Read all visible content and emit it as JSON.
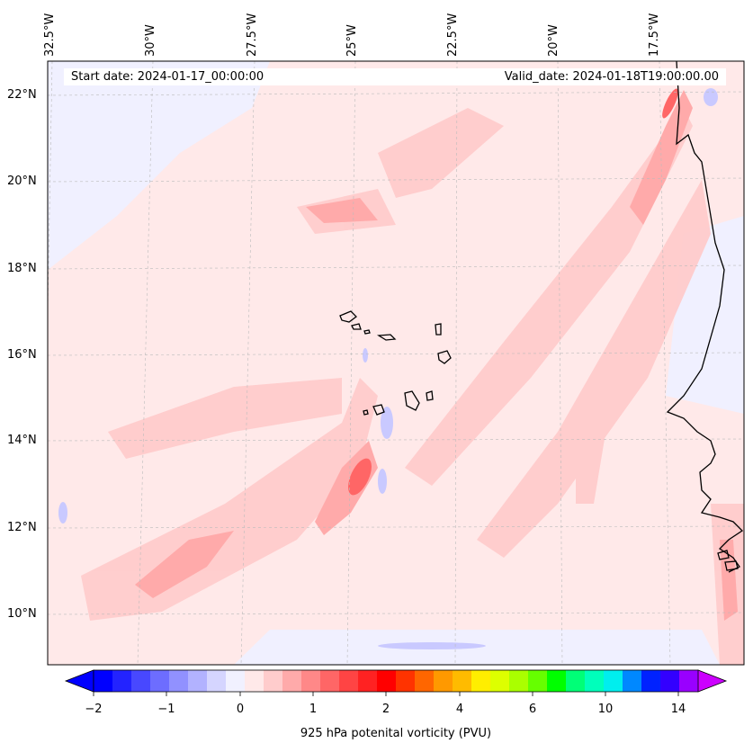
{
  "header": {
    "start_date": "Start date: 2024-01-17_00:00:00",
    "valid_date": "Valid_date: 2024-01-18T19:00:00.00"
  },
  "map": {
    "longitude_labels": [
      "32.5°W",
      "30°W",
      "27.5°W",
      "25°W",
      "22.5°W",
      "20°W",
      "17.5°W"
    ],
    "latitude_labels": [
      "22°N",
      "20°N",
      "18°N",
      "16°N",
      "14°N",
      "12°N",
      "10°N"
    ],
    "background_color": "#ffe9e9",
    "coastline_color": "#000000"
  },
  "colorbar": {
    "title": "925 hPa potenital vorticity (PVU)",
    "tick_labels": [
      "−2",
      "−1",
      "0",
      "1",
      "2",
      "4",
      "6",
      "10",
      "14"
    ],
    "colors": [
      "#0000ff",
      "#2323ff",
      "#4848ff",
      "#6d6dff",
      "#9191ff",
      "#b2b2ff",
      "#d5d5ff",
      "#f1f1ff",
      "#ffe9e9",
      "#ffcccc",
      "#ffaaaa",
      "#ff8888",
      "#ff6666",
      "#ff4444",
      "#ff2222",
      "#ff0000",
      "#ff3300",
      "#ff6600",
      "#ff9900",
      "#ffbb00",
      "#ffee00",
      "#ddff00",
      "#aaff00",
      "#66ff00",
      "#00ff00",
      "#00ff77",
      "#00ffbb",
      "#00eeee",
      "#0088ff",
      "#0022ff",
      "#3300ff",
      "#9900ff"
    ],
    "extend_min_color": "#0000ff",
    "extend_max_color": "#cc00ff"
  }
}
